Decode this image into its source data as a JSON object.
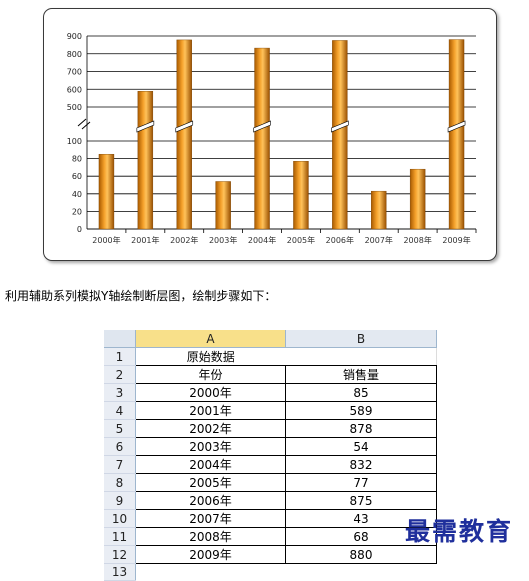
{
  "chart_data": {
    "type": "bar",
    "categories": [
      "2000年",
      "2001年",
      "2002年",
      "2003年",
      "2004年",
      "2005年",
      "2006年",
      "2007年",
      "2008年",
      "2009年"
    ],
    "values": [
      85,
      589,
      878,
      54,
      832,
      77,
      875,
      43,
      68,
      880
    ],
    "y_ticks_lower": [
      "0",
      "20",
      "40",
      "60",
      "80",
      "100"
    ],
    "y_ticks_upper": [
      "500",
      "600",
      "700",
      "800",
      "900"
    ],
    "break_at": 100,
    "upper_range": [
      500,
      900
    ],
    "title": "",
    "xlabel": "",
    "ylabel": "",
    "grid": true,
    "bar_color": "#e8900c"
  },
  "caption": "利用辅助系列模拟Y轴绘制断层图，绘制步骤如下：",
  "sheet": {
    "col_headers": [
      "A",
      "B"
    ],
    "row_numbers": [
      "1",
      "2",
      "3",
      "4",
      "5",
      "6",
      "7",
      "8",
      "9",
      "10",
      "11",
      "12",
      "13"
    ],
    "title_cell": "原始数据",
    "headers": [
      "年份",
      "销售量"
    ],
    "rows": [
      [
        "2000年",
        "85"
      ],
      [
        "2001年",
        "589"
      ],
      [
        "2002年",
        "878"
      ],
      [
        "2003年",
        "54"
      ],
      [
        "2004年",
        "832"
      ],
      [
        "2005年",
        "77"
      ],
      [
        "2006年",
        "875"
      ],
      [
        "2007年",
        "43"
      ],
      [
        "2008年",
        "68"
      ],
      [
        "2009年",
        "880"
      ]
    ]
  },
  "watermark": "最需教育",
  "colors": {
    "accent_header": "#f8e08a",
    "watermark": "#1f2f9c"
  }
}
